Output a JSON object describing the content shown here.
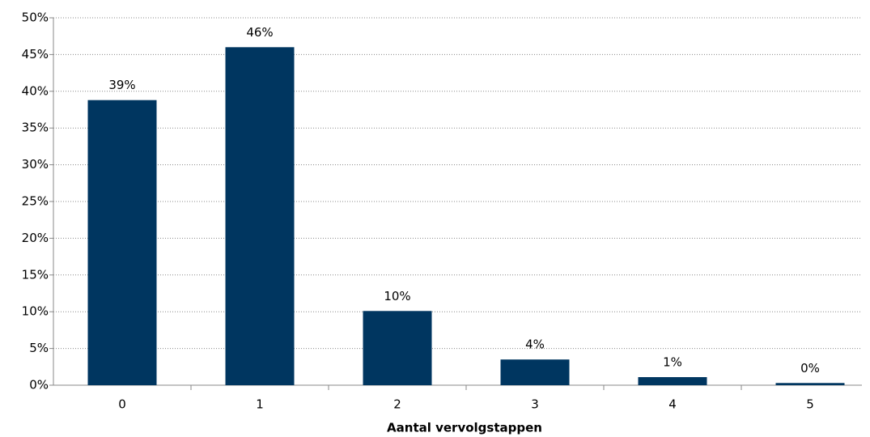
{
  "chart_data": {
    "type": "bar",
    "x_label": "Aantal vervolgstappen",
    "categories": [
      "0",
      "1",
      "2",
      "3",
      "4",
      "5"
    ],
    "values": [
      38.8,
      46,
      10.1,
      3.5,
      1.1,
      0.3
    ],
    "value_labels": [
      "39%",
      "46%",
      "10%",
      "4%",
      "1%",
      "0%"
    ],
    "color": "#003660",
    "ylim": [
      0,
      50
    ],
    "yticks": [
      {
        "value": 0,
        "label": "0%"
      },
      {
        "value": 5,
        "label": "5%"
      },
      {
        "value": 10,
        "label": "10%"
      },
      {
        "value": 15,
        "label": "15%"
      },
      {
        "value": 20,
        "label": "20%"
      },
      {
        "value": 25,
        "label": "25%"
      },
      {
        "value": 30,
        "label": "30%"
      },
      {
        "value": 35,
        "label": "35%"
      },
      {
        "value": 40,
        "label": "40%"
      },
      {
        "value": 45,
        "label": "45%"
      },
      {
        "value": 50,
        "label": "50%"
      }
    ],
    "grid": true
  }
}
